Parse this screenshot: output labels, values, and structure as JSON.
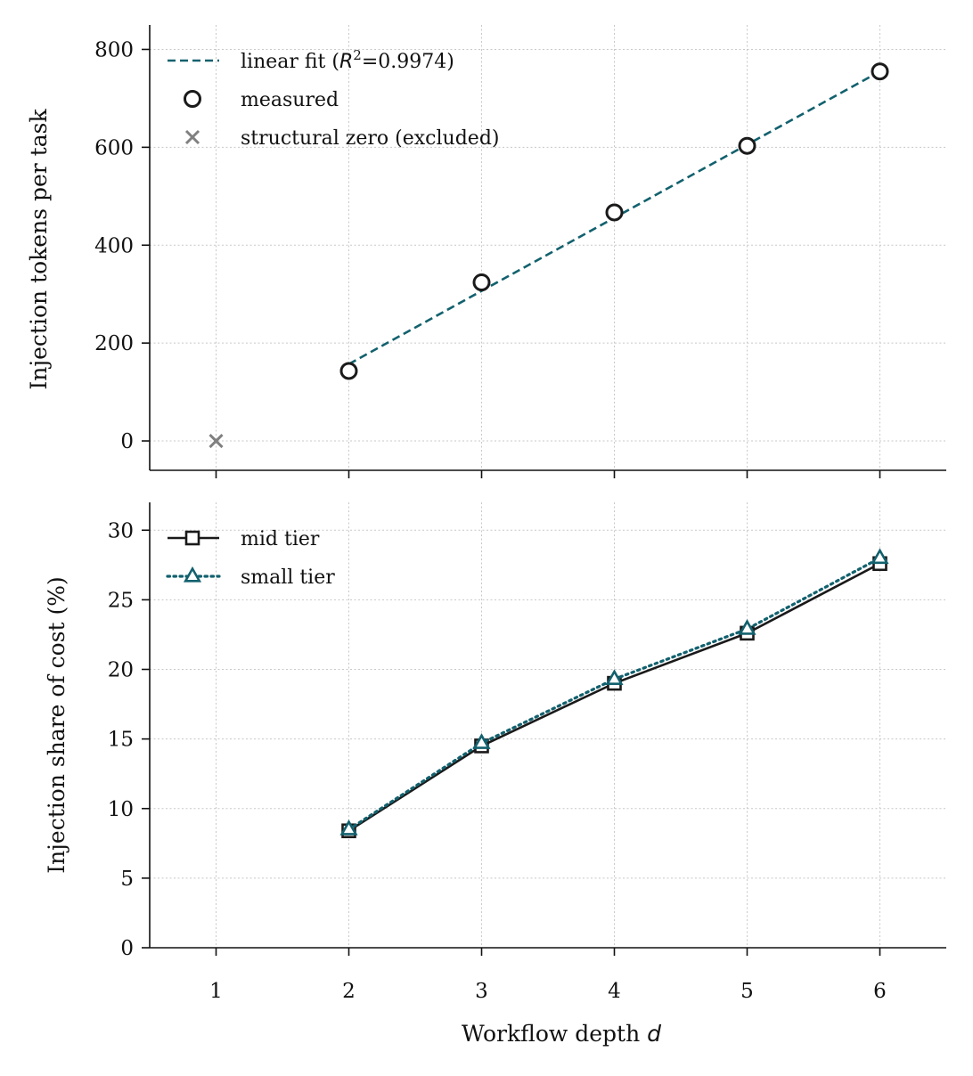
{
  "chart_data": [
    {
      "type": "scatter",
      "ylabel": "Injection tokens per task",
      "xlim": [
        0.5,
        6.5
      ],
      "ylim": [
        -60,
        850
      ],
      "xticks": [
        1,
        2,
        3,
        4,
        5,
        6
      ],
      "yticks": [
        0,
        200,
        400,
        600,
        800
      ],
      "grid": true,
      "legend_position": "top-left",
      "series": [
        {
          "name": "linear fit (R²=0.9974)",
          "name_parts": {
            "pre": "linear fit (",
            "r": "R",
            "sup": "2",
            "post": "=0.9974)"
          },
          "kind": "line",
          "style": "dashed",
          "color": "#12616e",
          "x": [
            2,
            6
          ],
          "y": [
            157,
            755
          ]
        },
        {
          "name": "measured",
          "kind": "marker",
          "marker": "circle",
          "color": "#1a1a1a",
          "x": [
            2,
            3,
            4,
            5,
            6
          ],
          "y": [
            143,
            324,
            467,
            603,
            755
          ]
        },
        {
          "name": "structural zero (excluded)",
          "kind": "marker",
          "marker": "x",
          "color": "#808080",
          "x": [
            1
          ],
          "y": [
            0
          ]
        }
      ]
    },
    {
      "type": "line",
      "xlabel": "Workflow depth",
      "xlabel_var": "d",
      "ylabel": "Injection share of cost (%)",
      "xlim": [
        0.5,
        6.5
      ],
      "ylim": [
        0,
        32
      ],
      "xticks": [
        1,
        2,
        3,
        4,
        5,
        6
      ],
      "yticks": [
        0,
        5,
        10,
        15,
        20,
        25,
        30
      ],
      "grid": true,
      "legend_position": "top-left",
      "series": [
        {
          "name": "mid tier",
          "kind": "line",
          "style": "solid",
          "marker": "square",
          "color": "#1a1a1a",
          "x": [
            2,
            3,
            4,
            5,
            6
          ],
          "y": [
            8.4,
            14.5,
            19.0,
            22.6,
            27.6
          ]
        },
        {
          "name": "small tier",
          "kind": "line",
          "style": "dotted",
          "marker": "triangle",
          "color": "#12616e",
          "x": [
            2,
            3,
            4,
            5,
            6
          ],
          "y": [
            8.5,
            14.7,
            19.3,
            22.9,
            28.0
          ]
        }
      ]
    }
  ]
}
